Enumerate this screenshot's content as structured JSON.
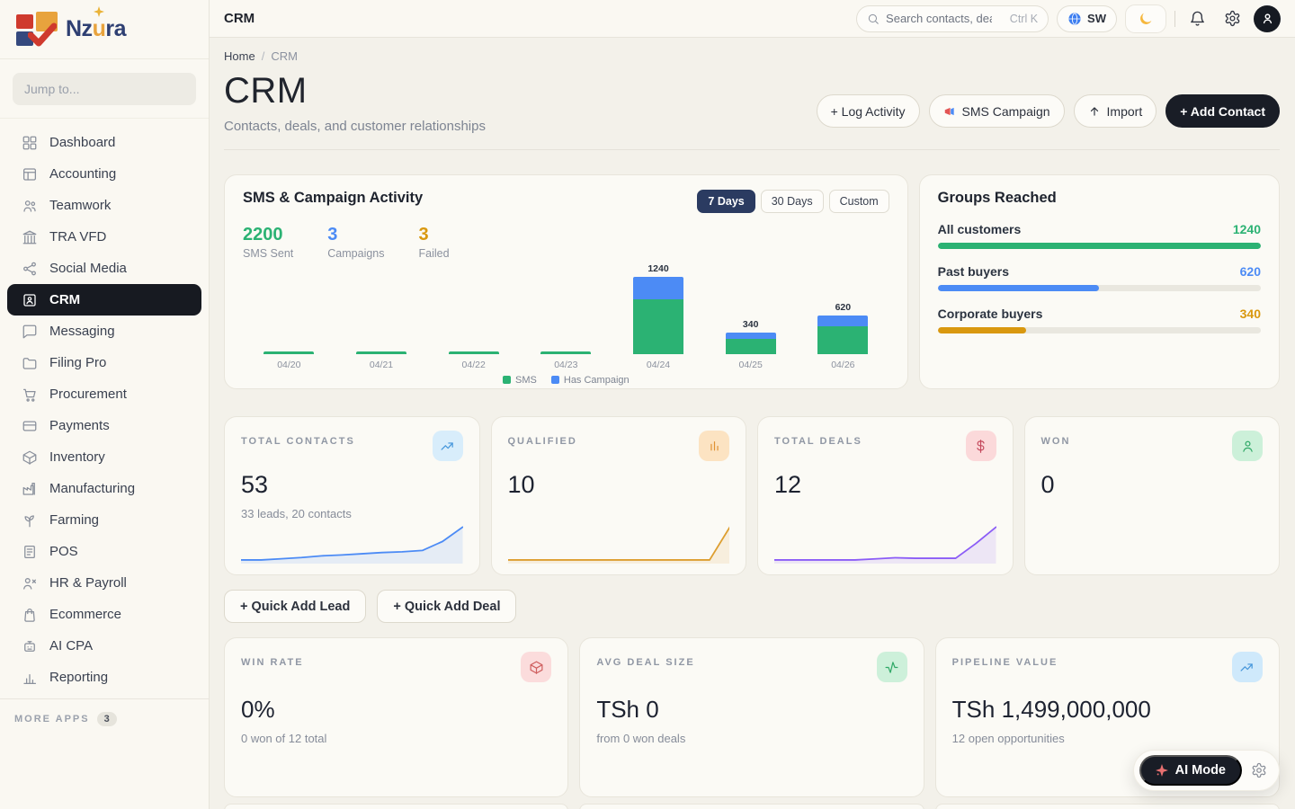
{
  "brand": {
    "p1": "Nz",
    "p2": "u",
    "p3": "ra"
  },
  "sidebar": {
    "jump_placeholder": "Jump to...",
    "items": [
      {
        "label": "Dashboard"
      },
      {
        "label": "Accounting"
      },
      {
        "label": "Teamwork"
      },
      {
        "label": "TRA VFD"
      },
      {
        "label": "Social Media"
      },
      {
        "label": "CRM"
      },
      {
        "label": "Messaging"
      },
      {
        "label": "Filing Pro"
      },
      {
        "label": "Procurement"
      },
      {
        "label": "Payments"
      },
      {
        "label": "Inventory"
      },
      {
        "label": "Manufacturing"
      },
      {
        "label": "Farming"
      },
      {
        "label": "POS"
      },
      {
        "label": "HR & Payroll"
      },
      {
        "label": "Ecommerce"
      },
      {
        "label": "AI CPA"
      },
      {
        "label": "Reporting"
      }
    ],
    "active_index": 5,
    "more_apps_label": "More Apps",
    "more_apps_count": "3"
  },
  "topbar": {
    "title": "CRM",
    "search_placeholder": "Search contacts, deals...",
    "search_shortcut": "Ctrl K",
    "language": "SW"
  },
  "header": {
    "breadcrumb_home": "Home",
    "breadcrumb_sep": "/",
    "breadcrumb_current": "CRM",
    "title": "CRM",
    "subtitle": "Contacts, deals, and customer relationships",
    "actions": {
      "log_activity": "+ Log Activity",
      "sms_campaign": "SMS Campaign",
      "import": "Import",
      "add_contact": "+ Add Contact"
    }
  },
  "sms_card": {
    "title": "SMS & Campaign Activity",
    "ranges": [
      "7 Days",
      "30 Days",
      "Custom"
    ],
    "active_range": 0,
    "stats": [
      {
        "value": "2200",
        "label": "SMS Sent",
        "color": "#2bb273"
      },
      {
        "value": "3",
        "label": "Campaigns",
        "color": "#4c8bf5"
      },
      {
        "value": "3",
        "label": "Failed",
        "color": "#d9980f"
      }
    ]
  },
  "stat_cards": [
    {
      "label": "Total Contacts",
      "value": "53",
      "sub": "33 leads, 20 contacts",
      "icon": "trend-up-icon",
      "icon_bg": "#d8edfb",
      "icon_fg": "#4596db"
    },
    {
      "label": "Qualified",
      "value": "10",
      "sub": "",
      "icon": "bar-chart-icon",
      "icon_bg": "#fce3c2",
      "icon_fg": "#e09132"
    },
    {
      "label": "Total Deals",
      "value": "12",
      "sub": "",
      "icon": "dollar-icon",
      "icon_bg": "#fbd9da",
      "icon_fg": "#c4485c"
    },
    {
      "label": "Won",
      "value": "0",
      "sub": "",
      "icon": "person-icon",
      "icon_bg": "#ccf0d9",
      "icon_fg": "#2fa866"
    }
  ],
  "quick": {
    "lead": "+ Quick Add Lead",
    "deal": "+ Quick Add Deal"
  },
  "kpi_cards": [
    {
      "label": "Win Rate",
      "value": "0%",
      "sub": "0 won of 12 total",
      "icon": "package-icon",
      "icon_bg": "#fbdcdc",
      "icon_fg": "#cf5f5f"
    },
    {
      "label": "Avg Deal Size",
      "value": "TSh 0",
      "sub": "from 0 won deals",
      "icon": "activity-icon",
      "icon_bg": "#cdf0da",
      "icon_fg": "#2fa866"
    },
    {
      "label": "Pipeline Value",
      "value": "TSh 1,499,000,000",
      "sub": "12 open opportunities",
      "icon": "trend-up-icon",
      "icon_bg": "#cfe9fb",
      "icon_fg": "#4596db"
    }
  ],
  "ai": {
    "label": "AI Mode"
  },
  "chart_data": [
    {
      "type": "bar",
      "stacked": true,
      "title": "SMS & Campaign Activity",
      "categories": [
        "04/20",
        "04/21",
        "04/22",
        "04/23",
        "04/24",
        "04/25",
        "04/26"
      ],
      "series": [
        {
          "name": "SMS",
          "color": "#2bb273",
          "values": [
            20,
            20,
            20,
            20,
            880,
            240,
            440
          ]
        },
        {
          "name": "Has Campaign",
          "color": "#4c8bf5",
          "values": [
            0,
            0,
            0,
            0,
            360,
            100,
            180
          ]
        }
      ],
      "bar_total_labels": [
        null,
        null,
        null,
        null,
        "1240",
        "340",
        "620"
      ],
      "ylim": [
        0,
        1300
      ],
      "legend_position": "bottom"
    },
    {
      "type": "bar",
      "orientation": "horizontal",
      "title": "Groups Reached",
      "max": 1240,
      "rows": [
        {
          "label": "All customers",
          "value": 1240,
          "color": "#2bb273"
        },
        {
          "label": "Past buyers",
          "value": 620,
          "color": "#4c8bf5"
        },
        {
          "label": "Corporate buyers",
          "value": 340,
          "color": "#d9980f"
        }
      ]
    },
    {
      "type": "line",
      "name": "Total Contacts trend",
      "target": "spark-contacts",
      "color": "#4c8bf5",
      "y": [
        2,
        2,
        2.3,
        2.6,
        3,
        3.2,
        3.5,
        3.8,
        4,
        4.3,
        6.5,
        10
      ]
    },
    {
      "type": "line",
      "name": "Qualified trend",
      "target": "spark-qualified",
      "color": "#dd9e2f",
      "y": [
        1,
        1,
        1,
        1,
        1,
        1,
        1,
        1,
        1,
        1,
        1,
        4.5
      ]
    },
    {
      "type": "line",
      "name": "Total Deals trend",
      "target": "spark-deals",
      "color": "#8b5cf6",
      "y": [
        1,
        1,
        1,
        1,
        1,
        1.2,
        1.4,
        1.3,
        1.3,
        1.3,
        4,
        7
      ]
    }
  ]
}
